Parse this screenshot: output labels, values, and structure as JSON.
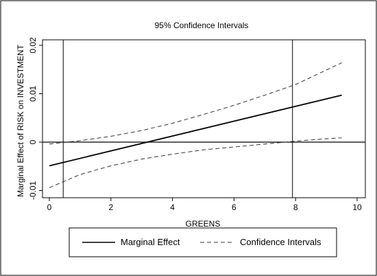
{
  "chart_data": {
    "type": "line",
    "title": "95% Confidence Intervals",
    "xlabel": "GREENS",
    "ylabel": "Marginal Effect of RISK on INVESTMENT",
    "xlim": [
      0,
      10
    ],
    "ylim": [
      -0.01,
      0.02
    ],
    "x_ticks": [
      0,
      2,
      4,
      6,
      8,
      10
    ],
    "x_tick_labels": [
      "0",
      "2",
      "4",
      "6",
      "8",
      "10"
    ],
    "y_ticks": [
      -0.01,
      0,
      0.01,
      0.02
    ],
    "y_tick_labels": [
      "-0.01",
      "0",
      "0.01",
      "0.02"
    ],
    "reference_lines": {
      "horizontal_y": 0,
      "vertical_x": [
        0.45,
        7.9
      ]
    },
    "series": [
      {
        "name": "Marginal Effect",
        "style": "solid",
        "x": [
          0,
          9.5
        ],
        "y": [
          -0.0049,
          0.0097
        ]
      },
      {
        "name": "Confidence Intervals",
        "style": "dashed",
        "role": "upper",
        "x": [
          0,
          1,
          2,
          3,
          4,
          5,
          6,
          7,
          8,
          9,
          9.5
        ],
        "y": [
          -0.0004,
          0.0003,
          0.0012,
          0.0024,
          0.0039,
          0.0057,
          0.0076,
          0.0097,
          0.0119,
          0.0149,
          0.0164
        ]
      },
      {
        "name": "Confidence Intervals",
        "style": "dashed",
        "role": "lower",
        "x": [
          0,
          1,
          2,
          3,
          4,
          5,
          6,
          7,
          8,
          9,
          9.5
        ],
        "y": [
          -0.0094,
          -0.0067,
          -0.0049,
          -0.0035,
          -0.0025,
          -0.0016,
          -0.001,
          -0.0004,
          0.0002,
          0.0007,
          0.0009
        ]
      }
    ],
    "legend": {
      "position": "bottom",
      "entries": [
        {
          "label": "Marginal Effect",
          "style": "solid"
        },
        {
          "label": "Confidence Intervals",
          "style": "dashed"
        }
      ]
    },
    "grid": false
  }
}
